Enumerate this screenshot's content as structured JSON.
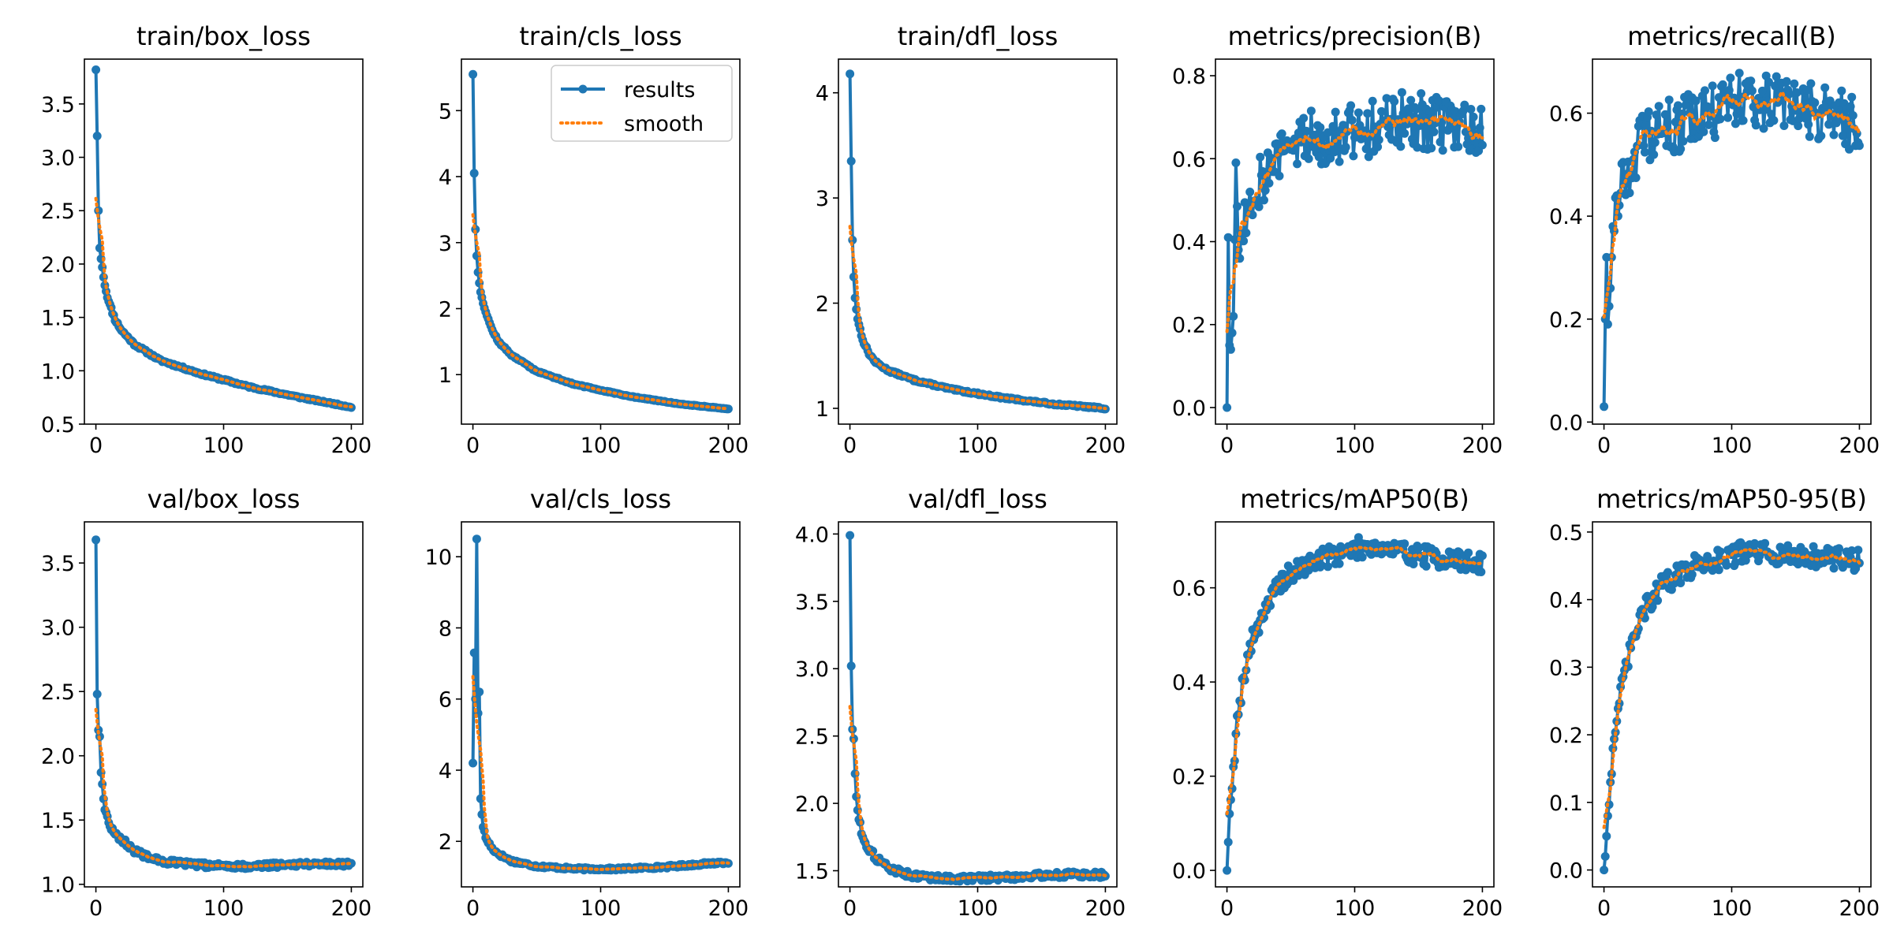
{
  "figure": {
    "legend": {
      "entries": [
        "results",
        "smooth"
      ],
      "position": "top-right",
      "subplot_index": 1
    },
    "colors": {
      "results": "#1f77b4",
      "smooth": "#ff7f0e",
      "axes": "#000000",
      "background": "#ffffff"
    }
  },
  "chart_data": [
    {
      "type": "line",
      "title": "train/box_loss",
      "xlabel": "",
      "ylabel": "",
      "xlim": [
        -9,
        209
      ],
      "ylim": [
        0.5,
        3.92
      ],
      "xticks": [
        0,
        100,
        200
      ],
      "yticks": [
        0.5,
        1.0,
        1.5,
        2.0,
        2.5,
        3.0,
        3.5
      ],
      "tick_labels_y": [
        "0.5",
        "1.0",
        "1.5",
        "2.0",
        "2.5",
        "3.0",
        "3.5"
      ],
      "trend": {
        "kind": "decay",
        "start": 3.82,
        "shape": [
          [
            0,
            3.82
          ],
          [
            1,
            3.2
          ],
          [
            2,
            2.5
          ],
          [
            3,
            2.15
          ],
          [
            5,
            1.97
          ],
          [
            7,
            1.8
          ],
          [
            10,
            1.65
          ],
          [
            15,
            1.48
          ],
          [
            20,
            1.38
          ],
          [
            30,
            1.25
          ],
          [
            50,
            1.1
          ],
          [
            80,
            0.98
          ],
          [
            120,
            0.85
          ],
          [
            160,
            0.75
          ],
          [
            200,
            0.66
          ]
        ],
        "noise": 0.01,
        "seed": 11
      },
      "series": [
        {
          "name": "results"
        },
        {
          "name": "smooth"
        }
      ]
    },
    {
      "type": "line",
      "title": "train/cls_loss",
      "xlabel": "",
      "ylabel": "",
      "xlim": [
        -9,
        209
      ],
      "ylim": [
        0.25,
        5.78
      ],
      "xticks": [
        0,
        100,
        200
      ],
      "yticks": [
        1,
        2,
        3,
        4,
        5
      ],
      "tick_labels_y": [
        "1",
        "2",
        "3",
        "4",
        "5"
      ],
      "trend": {
        "kind": "decay",
        "shape": [
          [
            0,
            5.55
          ],
          [
            1,
            4.05
          ],
          [
            2,
            3.2
          ],
          [
            3,
            2.8
          ],
          [
            4,
            2.55
          ],
          [
            6,
            2.25
          ],
          [
            10,
            1.95
          ],
          [
            15,
            1.68
          ],
          [
            20,
            1.5
          ],
          [
            30,
            1.3
          ],
          [
            50,
            1.05
          ],
          [
            80,
            0.85
          ],
          [
            120,
            0.68
          ],
          [
            160,
            0.56
          ],
          [
            200,
            0.48
          ]
        ],
        "noise": 0.01,
        "seed": 12
      },
      "series": [
        {
          "name": "results"
        },
        {
          "name": "smooth"
        }
      ]
    },
    {
      "type": "line",
      "title": "train/dfl_loss",
      "xlabel": "",
      "ylabel": "",
      "xlim": [
        -9,
        209
      ],
      "ylim": [
        0.85,
        4.32
      ],
      "xticks": [
        0,
        100,
        200
      ],
      "yticks": [
        1,
        2,
        3,
        4
      ],
      "tick_labels_y": [
        "1",
        "2",
        "3",
        "4"
      ],
      "trend": {
        "kind": "decay",
        "shape": [
          [
            0,
            4.18
          ],
          [
            1,
            3.35
          ],
          [
            2,
            2.6
          ],
          [
            3,
            2.25
          ],
          [
            4,
            2.05
          ],
          [
            6,
            1.85
          ],
          [
            10,
            1.65
          ],
          [
            15,
            1.52
          ],
          [
            20,
            1.44
          ],
          [
            30,
            1.36
          ],
          [
            50,
            1.27
          ],
          [
            80,
            1.18
          ],
          [
            120,
            1.1
          ],
          [
            160,
            1.04
          ],
          [
            200,
            1.0
          ]
        ],
        "noise": 0.008,
        "seed": 13
      },
      "series": [
        {
          "name": "results"
        },
        {
          "name": "smooth"
        }
      ]
    },
    {
      "type": "line",
      "title": "metrics/precision(B)",
      "xlabel": "",
      "ylabel": "",
      "xlim": [
        -9,
        209
      ],
      "ylim": [
        -0.04,
        0.84
      ],
      "xticks": [
        0,
        100,
        200
      ],
      "yticks": [
        0.0,
        0.2,
        0.4,
        0.6,
        0.8
      ],
      "tick_labels_y": [
        "0.0",
        "0.2",
        "0.4",
        "0.6",
        "0.8"
      ],
      "trend": {
        "kind": "rise",
        "shape": [
          [
            0,
            0.0
          ],
          [
            1,
            0.41
          ],
          [
            2,
            0.15
          ],
          [
            3,
            0.14
          ],
          [
            5,
            0.22
          ],
          [
            7,
            0.59
          ],
          [
            9,
            0.38
          ],
          [
            15,
            0.48
          ],
          [
            25,
            0.55
          ],
          [
            40,
            0.6
          ],
          [
            60,
            0.65
          ],
          [
            100,
            0.67
          ],
          [
            140,
            0.69
          ],
          [
            180,
            0.68
          ],
          [
            200,
            0.68
          ]
        ],
        "noise": 0.045,
        "seed": 14,
        "noise_from": 10
      },
      "series": [
        {
          "name": "results"
        },
        {
          "name": "smooth"
        }
      ]
    },
    {
      "type": "line",
      "title": "metrics/recall(B)",
      "xlabel": "",
      "ylabel": "",
      "xlim": [
        -9,
        209
      ],
      "ylim": [
        -0.004,
        0.705
      ],
      "xticks": [
        0,
        100,
        200
      ],
      "yticks": [
        0.0,
        0.2,
        0.4,
        0.6
      ],
      "tick_labels_y": [
        "0.0",
        "0.2",
        "0.4",
        "0.6"
      ],
      "trend": {
        "kind": "rise",
        "shape": [
          [
            0,
            0.03
          ],
          [
            1,
            0.2
          ],
          [
            2,
            0.32
          ],
          [
            3,
            0.19
          ],
          [
            5,
            0.26
          ],
          [
            7,
            0.38
          ],
          [
            10,
            0.44
          ],
          [
            15,
            0.47
          ],
          [
            25,
            0.53
          ],
          [
            40,
            0.56
          ],
          [
            70,
            0.59
          ],
          [
            110,
            0.63
          ],
          [
            150,
            0.61
          ],
          [
            200,
            0.58
          ]
        ],
        "noise": 0.035,
        "seed": 15,
        "noise_from": 8
      },
      "series": [
        {
          "name": "results"
        },
        {
          "name": "smooth"
        }
      ]
    },
    {
      "type": "line",
      "title": "val/box_loss",
      "xlabel": "",
      "ylabel": "",
      "xlim": [
        -9,
        209
      ],
      "ylim": [
        0.98,
        3.82
      ],
      "xticks": [
        0,
        100,
        200
      ],
      "yticks": [
        1.0,
        1.5,
        2.0,
        2.5,
        3.0,
        3.5
      ],
      "tick_labels_y": [
        "1.0",
        "1.5",
        "2.0",
        "2.5",
        "3.0",
        "3.5"
      ],
      "trend": {
        "kind": "decay",
        "shape": [
          [
            0,
            3.68
          ],
          [
            1,
            2.48
          ],
          [
            2,
            2.2
          ],
          [
            3,
            2.15
          ],
          [
            4,
            1.87
          ],
          [
            5,
            1.78
          ],
          [
            7,
            1.58
          ],
          [
            10,
            1.48
          ],
          [
            15,
            1.4
          ],
          [
            20,
            1.35
          ],
          [
            30,
            1.26
          ],
          [
            50,
            1.18
          ],
          [
            80,
            1.15
          ],
          [
            120,
            1.14
          ],
          [
            160,
            1.16
          ],
          [
            200,
            1.16
          ]
        ],
        "noise": 0.018,
        "seed": 16
      },
      "series": [
        {
          "name": "results"
        },
        {
          "name": "smooth"
        }
      ]
    },
    {
      "type": "line",
      "title": "val/cls_loss",
      "xlabel": "",
      "ylabel": "",
      "xlim": [
        -9,
        209
      ],
      "ylim": [
        0.72,
        10.98
      ],
      "xticks": [
        0,
        100,
        200
      ],
      "yticks": [
        2,
        4,
        6,
        8,
        10
      ],
      "tick_labels_y": [
        "2",
        "4",
        "6",
        "8",
        "10"
      ],
      "trend": {
        "kind": "decay",
        "shape": [
          [
            0,
            4.2
          ],
          [
            1,
            7.3
          ],
          [
            2,
            6.0
          ],
          [
            3,
            10.5
          ],
          [
            4,
            5.6
          ],
          [
            5,
            6.2
          ],
          [
            6,
            3.2
          ],
          [
            8,
            2.4
          ],
          [
            10,
            2.1
          ],
          [
            15,
            1.8
          ],
          [
            20,
            1.65
          ],
          [
            30,
            1.45
          ],
          [
            50,
            1.3
          ],
          [
            80,
            1.23
          ],
          [
            110,
            1.22
          ],
          [
            150,
            1.28
          ],
          [
            200,
            1.42
          ]
        ],
        "noise": 0.03,
        "seed": 17
      },
      "series": [
        {
          "name": "results"
        },
        {
          "name": "smooth"
        }
      ]
    },
    {
      "type": "line",
      "title": "val/dfl_loss",
      "xlabel": "",
      "ylabel": "",
      "xlim": [
        -9,
        209
      ],
      "ylim": [
        1.38,
        4.09
      ],
      "xticks": [
        0,
        100,
        200
      ],
      "yticks": [
        1.5,
        2.0,
        2.5,
        3.0,
        3.5,
        4.0
      ],
      "tick_labels_y": [
        "1.5",
        "2.0",
        "2.5",
        "3.0",
        "3.5",
        "4.0"
      ],
      "trend": {
        "kind": "decay",
        "shape": [
          [
            0,
            3.99
          ],
          [
            1,
            3.02
          ],
          [
            2,
            2.55
          ],
          [
            3,
            2.48
          ],
          [
            4,
            2.22
          ],
          [
            5,
            2.05
          ],
          [
            7,
            1.88
          ],
          [
            10,
            1.75
          ],
          [
            15,
            1.66
          ],
          [
            20,
            1.6
          ],
          [
            30,
            1.52
          ],
          [
            50,
            1.46
          ],
          [
            80,
            1.44
          ],
          [
            120,
            1.45
          ],
          [
            160,
            1.47
          ],
          [
            200,
            1.47
          ]
        ],
        "noise": 0.015,
        "seed": 18
      },
      "series": [
        {
          "name": "results"
        },
        {
          "name": "smooth"
        }
      ]
    },
    {
      "type": "line",
      "title": "metrics/mAP50(B)",
      "xlabel": "",
      "ylabel": "",
      "xlim": [
        -9,
        209
      ],
      "ylim": [
        -0.035,
        0.74
      ],
      "xticks": [
        0,
        100,
        200
      ],
      "yticks": [
        0.0,
        0.2,
        0.4,
        0.6
      ],
      "tick_labels_y": [
        "0.0",
        "0.2",
        "0.4",
        "0.6"
      ],
      "trend": {
        "kind": "rise",
        "shape": [
          [
            0,
            0.0
          ],
          [
            1,
            0.06
          ],
          [
            2,
            0.12
          ],
          [
            3,
            0.15
          ],
          [
            5,
            0.22
          ],
          [
            7,
            0.29
          ],
          [
            10,
            0.36
          ],
          [
            15,
            0.44
          ],
          [
            20,
            0.49
          ],
          [
            30,
            0.56
          ],
          [
            45,
            0.62
          ],
          [
            70,
            0.66
          ],
          [
            110,
            0.69
          ],
          [
            150,
            0.67
          ],
          [
            200,
            0.65
          ]
        ],
        "noise": 0.014,
        "seed": 19
      },
      "series": [
        {
          "name": "results"
        },
        {
          "name": "smooth"
        }
      ]
    },
    {
      "type": "line",
      "title": "metrics/mAP50-95(B)",
      "xlabel": "",
      "ylabel": "",
      "xlim": [
        -9,
        209
      ],
      "ylim": [
        -0.025,
        0.515
      ],
      "xticks": [
        0,
        100,
        200
      ],
      "yticks": [
        0.0,
        0.1,
        0.2,
        0.3,
        0.4,
        0.5
      ],
      "tick_labels_y": [
        "0.0",
        "0.1",
        "0.2",
        "0.3",
        "0.4",
        "0.5"
      ],
      "trend": {
        "kind": "rise",
        "shape": [
          [
            0,
            0.0
          ],
          [
            1,
            0.02
          ],
          [
            2,
            0.05
          ],
          [
            3,
            0.08
          ],
          [
            5,
            0.13
          ],
          [
            7,
            0.18
          ],
          [
            10,
            0.22
          ],
          [
            15,
            0.28
          ],
          [
            20,
            0.32
          ],
          [
            30,
            0.38
          ],
          [
            45,
            0.42
          ],
          [
            70,
            0.45
          ],
          [
            110,
            0.47
          ],
          [
            150,
            0.465
          ],
          [
            200,
            0.458
          ]
        ],
        "noise": 0.01,
        "seed": 20
      },
      "series": [
        {
          "name": "results"
        },
        {
          "name": "smooth"
        }
      ]
    }
  ]
}
